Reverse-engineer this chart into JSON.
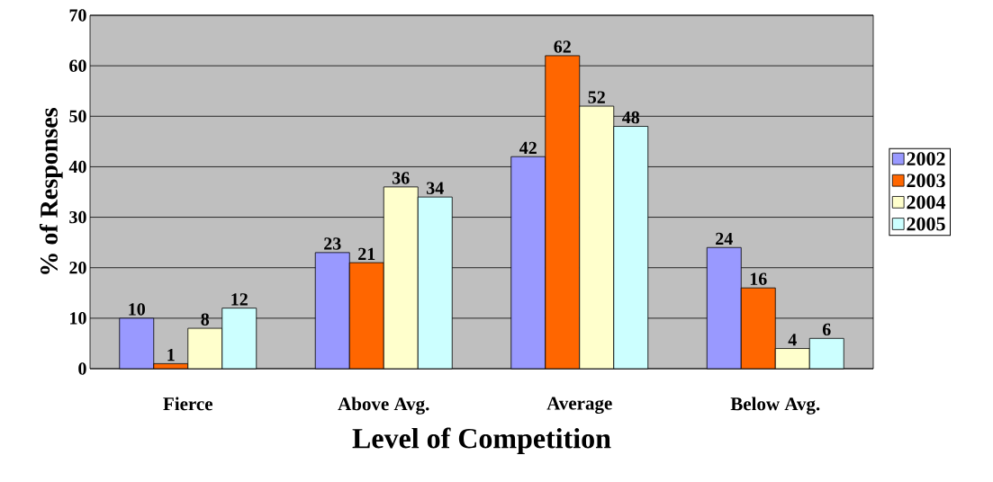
{
  "chart_data": {
    "type": "bar",
    "xlabel": "Level of Competition",
    "ylabel": "% of Responses",
    "categories": [
      "Fierce",
      "Above Avg.",
      "Average",
      "Below Avg."
    ],
    "series": [
      {
        "name": "2002",
        "color": "#9999ff",
        "values": [
          10,
          23,
          42,
          24
        ]
      },
      {
        "name": "2003",
        "color": "#ff6600",
        "values": [
          1,
          21,
          62,
          16
        ]
      },
      {
        "name": "2004",
        "color": "#ffffcc",
        "values": [
          8,
          36,
          52,
          4
        ]
      },
      {
        "name": "2005",
        "color": "#ccffff",
        "values": [
          12,
          34,
          48,
          6
        ]
      }
    ],
    "ylim": [
      0,
      70
    ],
    "yticks": [
      0,
      10,
      20,
      30,
      40,
      50,
      60,
      70
    ],
    "grid": "y",
    "legend": "right",
    "data_labels": true
  }
}
